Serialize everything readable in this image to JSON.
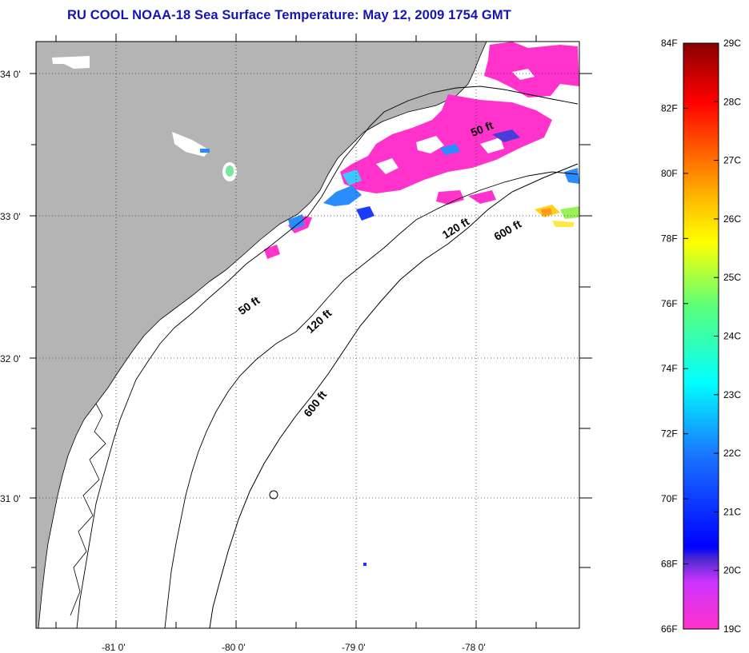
{
  "title": "RU COOL  NOAA-18  Sea Surface Temperature:  May 12, 2009 1754 GMT",
  "axes": {
    "lat_ticks": [
      "34 0'",
      "33 0'",
      "32 0'",
      "31 0'"
    ],
    "lon_ticks": [
      "-81 0'",
      "-80 0'",
      "-79 0'",
      "-78 0'"
    ]
  },
  "isobaths": {
    "inner_a": "50 ft",
    "inner_b": "50 ft",
    "mid_a": "120 ft",
    "mid_b": "120 ft",
    "outer_a": "600 ft",
    "outer_b": "600 ft"
  },
  "colorbar": {
    "f_labels": [
      "84F",
      "82F",
      "80F",
      "78F",
      "76F",
      "74F",
      "72F",
      "70F",
      "68F",
      "66F"
    ],
    "c_labels": [
      "29C",
      "28C",
      "27C",
      "26C",
      "25C",
      "24C",
      "23C",
      "22C",
      "21C",
      "20C",
      "19C"
    ]
  },
  "colors": {
    "land": "#b4b4b4",
    "ocean": "#ffffff",
    "title": "#1515b5",
    "cold_sst": "#ff33cc"
  }
}
